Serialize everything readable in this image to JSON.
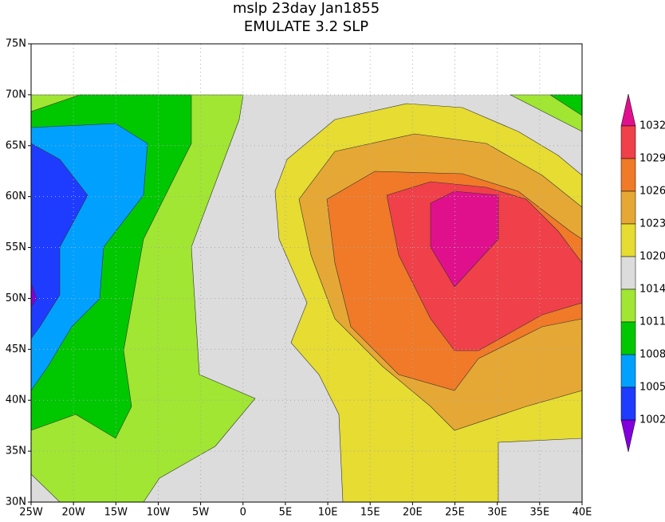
{
  "title": [
    "mslp 23day Jan1855",
    "EMULATE 3.2 SLP"
  ],
  "map": {
    "lon_labels": [
      "25W",
      "20W",
      "15W",
      "10W",
      "5W",
      "0",
      "5E",
      "10E",
      "15E",
      "20E",
      "25E",
      "30E",
      "35E",
      "40E"
    ],
    "lat_labels": [
      "30N",
      "35N",
      "40N",
      "45N",
      "50N",
      "55N",
      "60N",
      "65N",
      "70N",
      "75N"
    ]
  },
  "colorbar": {
    "levels": [
      1032,
      1029,
      1026,
      1023,
      1020,
      1014,
      1011,
      1008,
      1005,
      1002
    ],
    "colors": [
      "#e0108c",
      "#f0404a",
      "#f07a28",
      "#e6a834",
      "#e6dc32",
      "#dcdcdc",
      "#a0e632",
      "#00c800",
      "#00a0ff",
      "#1e3cff",
      "#8200dc"
    ]
  }
}
